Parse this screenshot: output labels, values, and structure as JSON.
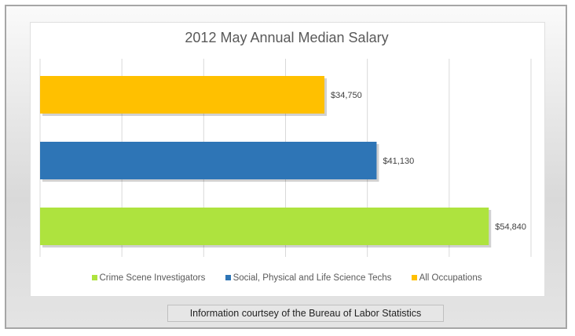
{
  "chart_data": {
    "type": "bar",
    "orientation": "horizontal",
    "title": "2012 May Annual Median Salary",
    "categories": [
      "Crime Scene Investigators",
      "Social, Physical and Life Science Techs",
      "All Occupations"
    ],
    "series": [
      {
        "name": "Crime Scene Investigators",
        "value": 54840,
        "label": "$54,840",
        "color": "#aee33e"
      },
      {
        "name": "Social, Physical and Life Science Techs",
        "value": 41130,
        "label": "$41,130",
        "color": "#2e75b6"
      },
      {
        "name": "All Occupations",
        "value": 34750,
        "label": "$34,750",
        "color": "#ffc000"
      }
    ],
    "xlim": [
      0,
      60000
    ],
    "grid": true,
    "legend": "bottom"
  },
  "caption": "Information courtsey of the Bureau of Labor Statistics"
}
